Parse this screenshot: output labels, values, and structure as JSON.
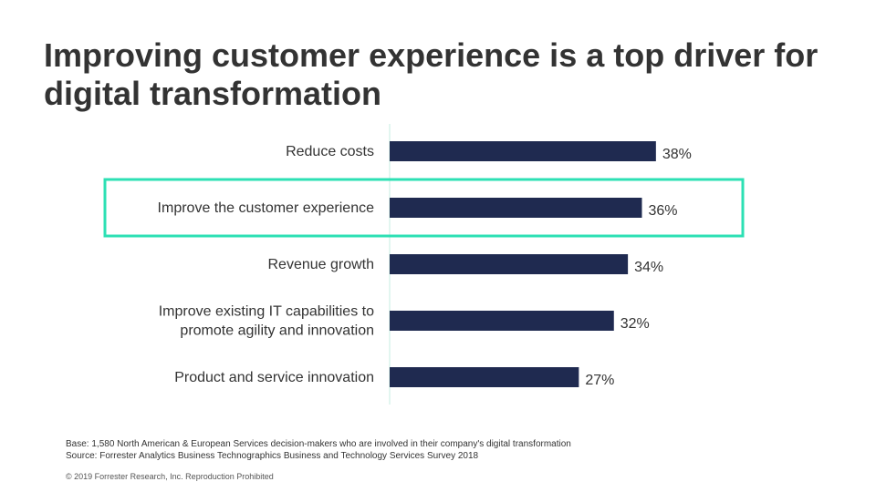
{
  "title": {
    "line1": "Improving customer experience is a top driver for",
    "line2": "digital transformation"
  },
  "chart_data": {
    "type": "bar",
    "orientation": "horizontal",
    "categories": [
      [
        "Reduce costs"
      ],
      [
        "Improve the customer experience"
      ],
      [
        "Revenue growth"
      ],
      [
        "Improve existing IT capabilities to",
        "promote agility and innovation"
      ],
      [
        "Product and service innovation"
      ]
    ],
    "values": [
      38,
      36,
      34,
      32,
      27
    ],
    "value_labels": [
      "38%",
      "36%",
      "34%",
      "32%",
      "27%"
    ],
    "unit": "%",
    "xlim": [
      0,
      50
    ],
    "highlighted_index": 1,
    "bar_color": "#1f2a50",
    "highlight_color": "#2de0b4",
    "axis_color": "#d9f3ec"
  },
  "footnotes": {
    "base": "Base: 1,580 North American & European Services decision-makers who are involved in their company's digital transformation",
    "source": "Source: Forrester Analytics Business Technographics Business and Technology Services Survey 2018"
  },
  "copyright": "© 2019 Forrester Research, Inc. Reproduction Prohibited"
}
